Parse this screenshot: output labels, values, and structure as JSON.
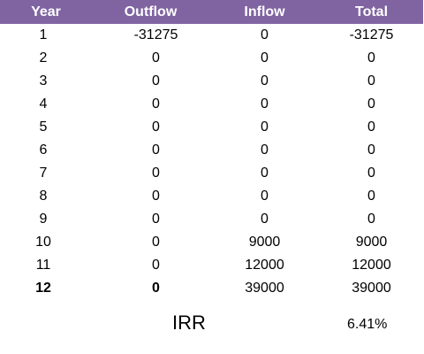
{
  "headers": {
    "year": "Year",
    "outflow": "Outflow",
    "inflow": "Inflow",
    "total": "Total"
  },
  "rows": [
    {
      "year": "1",
      "outflow": "-31275",
      "inflow": "0",
      "total": "-31275"
    },
    {
      "year": "2",
      "outflow": "0",
      "inflow": "0",
      "total": "0"
    },
    {
      "year": "3",
      "outflow": "0",
      "inflow": "0",
      "total": "0"
    },
    {
      "year": "4",
      "outflow": "0",
      "inflow": "0",
      "total": "0"
    },
    {
      "year": "5",
      "outflow": "0",
      "inflow": "0",
      "total": "0"
    },
    {
      "year": "6",
      "outflow": "0",
      "inflow": "0",
      "total": "0"
    },
    {
      "year": "7",
      "outflow": "0",
      "inflow": "0",
      "total": "0"
    },
    {
      "year": "8",
      "outflow": "0",
      "inflow": "0",
      "total": "0"
    },
    {
      "year": "9",
      "outflow": "0",
      "inflow": "0",
      "total": "0"
    },
    {
      "year": "10",
      "outflow": "0",
      "inflow": "9000",
      "total": "9000"
    },
    {
      "year": "11",
      "outflow": "0",
      "inflow": "12000",
      "total": "12000"
    },
    {
      "year": "12",
      "outflow": "0",
      "inflow": "39000",
      "total": "39000"
    }
  ],
  "irr": {
    "label": "IRR",
    "value": "6.41%"
  },
  "colors": {
    "header_background": "#8064a2",
    "header_text": "#ffffff"
  }
}
